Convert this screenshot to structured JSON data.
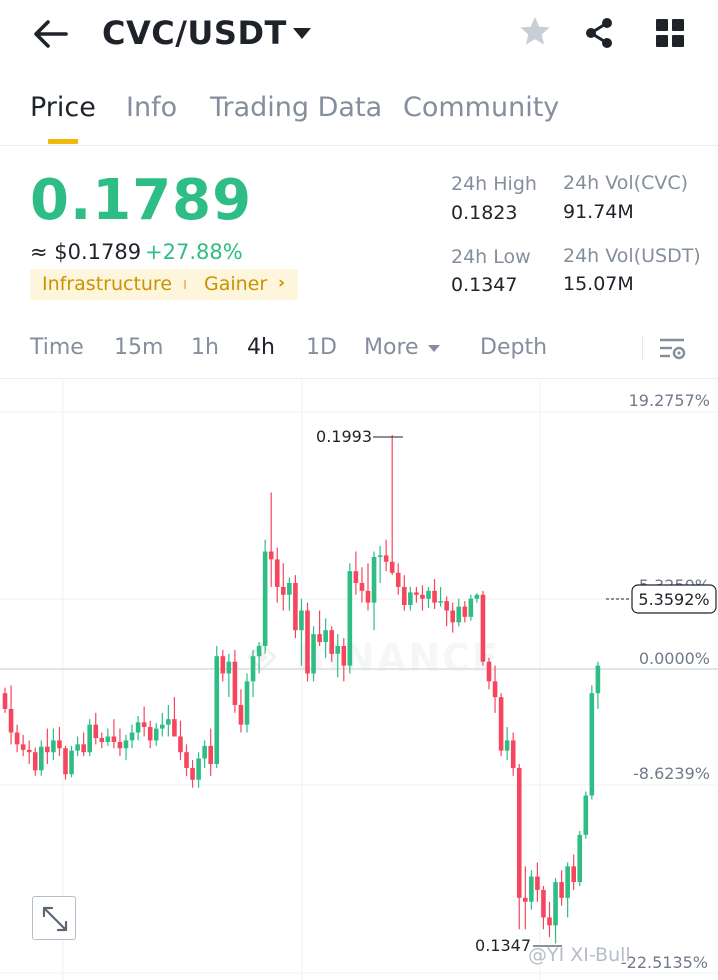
{
  "header": {
    "pair": "CVC/USDT"
  },
  "tabs": [
    "Price",
    "Info",
    "Trading Data",
    "Community"
  ],
  "ticker": {
    "last_price": "0.1789",
    "usd_price": "≈ $0.1789",
    "change_pct": "+27.88%",
    "tags": [
      "Infrastructure",
      "Gainer"
    ],
    "high_label": "24h High",
    "high_value": "0.1823",
    "low_label": "24h Low",
    "low_value": "0.1347",
    "vol_base_label": "24h Vol(CVC)",
    "vol_base_value": "91.74M",
    "vol_quote_label": "24h Vol(USDT)",
    "vol_quote_value": "15.07M"
  },
  "controls": {
    "time": "Time",
    "intervals": [
      "15m",
      "1h",
      "4h",
      "1D"
    ],
    "active_interval": "4h",
    "more": "More",
    "depth": "Depth"
  },
  "chart_data": {
    "type": "candlestick",
    "interval": "4h",
    "y_axis_labels": [
      "19.2757%",
      "0.0000%",
      "-8.6239%"
    ],
    "right_labels_partial": [
      "5.3250%",
      "-22.5135%"
    ],
    "current_marker": "5.3592%",
    "max_label": "0.1993",
    "min_label": "0.1347",
    "watermark_logo": "BINANCE",
    "up_color": "#2ebd85",
    "down_color": "#f6465d",
    "ohlc": [
      [
        0.1665,
        0.1672,
        0.164,
        0.1645
      ],
      [
        0.1645,
        0.1675,
        0.16,
        0.1615
      ],
      [
        0.1615,
        0.1625,
        0.159,
        0.16
      ],
      [
        0.16,
        0.1612,
        0.1585,
        0.1593
      ],
      [
        0.1593,
        0.1605,
        0.1575,
        0.159
      ],
      [
        0.159,
        0.1596,
        0.156,
        0.1567
      ],
      [
        0.1567,
        0.1605,
        0.156,
        0.1597
      ],
      [
        0.1597,
        0.162,
        0.1575,
        0.159
      ],
      [
        0.159,
        0.162,
        0.158,
        0.1605
      ],
      [
        0.1605,
        0.1622,
        0.1585,
        0.1595
      ],
      [
        0.1595,
        0.1598,
        0.1555,
        0.1562
      ],
      [
        0.1562,
        0.1598,
        0.1558,
        0.1592
      ],
      [
        0.1592,
        0.161,
        0.1585,
        0.16
      ],
      [
        0.16,
        0.1615,
        0.1585,
        0.159
      ],
      [
        0.159,
        0.1632,
        0.1585,
        0.1625
      ],
      [
        0.1625,
        0.164,
        0.16,
        0.1608
      ],
      [
        0.1608,
        0.1615,
        0.1595,
        0.1603
      ],
      [
        0.1603,
        0.162,
        0.1598,
        0.161
      ],
      [
        0.161,
        0.1632,
        0.1595,
        0.1603
      ],
      [
        0.1603,
        0.162,
        0.1585,
        0.1595
      ],
      [
        0.1595,
        0.1612,
        0.158,
        0.1605
      ],
      [
        0.1605,
        0.1625,
        0.1595,
        0.1615
      ],
      [
        0.1615,
        0.1636,
        0.1605,
        0.1628
      ],
      [
        0.1628,
        0.1648,
        0.161,
        0.1622
      ],
      [
        0.1622,
        0.163,
        0.1595,
        0.1605
      ],
      [
        0.1605,
        0.1627,
        0.1598,
        0.162
      ],
      [
        0.162,
        0.164,
        0.161,
        0.1625
      ],
      [
        0.1625,
        0.165,
        0.161,
        0.1632
      ],
      [
        0.1632,
        0.166,
        0.1615,
        0.161
      ],
      [
        0.161,
        0.163,
        0.158,
        0.159
      ],
      [
        0.159,
        0.16,
        0.156,
        0.157
      ],
      [
        0.157,
        0.158,
        0.1545,
        0.1555
      ],
      [
        0.1555,
        0.159,
        0.1545,
        0.1582
      ],
      [
        0.1582,
        0.1605,
        0.157,
        0.1598
      ],
      [
        0.1598,
        0.162,
        0.156,
        0.1575
      ],
      [
        0.1575,
        0.1725,
        0.157,
        0.1712
      ],
      [
        0.1712,
        0.172,
        0.168,
        0.169
      ],
      [
        0.169,
        0.1715,
        0.166,
        0.1705
      ],
      [
        0.1705,
        0.172,
        0.164,
        0.165
      ],
      [
        0.165,
        0.167,
        0.1615,
        0.1625
      ],
      [
        0.1625,
        0.169,
        0.1615,
        0.168
      ],
      [
        0.168,
        0.172,
        0.166,
        0.1712
      ],
      [
        0.1712,
        0.173,
        0.169,
        0.1725
      ],
      [
        0.1725,
        0.186,
        0.1715,
        0.1845
      ],
      [
        0.1845,
        0.192,
        0.18,
        0.1835
      ],
      [
        0.1835,
        0.185,
        0.178,
        0.18
      ],
      [
        0.18,
        0.183,
        0.177,
        0.179
      ],
      [
        0.179,
        0.1812,
        0.177,
        0.1805
      ],
      [
        0.1805,
        0.1815,
        0.1735,
        0.1745
      ],
      [
        0.1745,
        0.1785,
        0.17,
        0.177
      ],
      [
        0.177,
        0.178,
        0.168,
        0.169
      ],
      [
        0.169,
        0.175,
        0.168,
        0.174
      ],
      [
        0.174,
        0.177,
        0.1725,
        0.173
      ],
      [
        0.173,
        0.176,
        0.171,
        0.1745
      ],
      [
        0.1745,
        0.175,
        0.1705,
        0.1715
      ],
      [
        0.1715,
        0.174,
        0.1685,
        0.1725
      ],
      [
        0.1725,
        0.1735,
        0.168,
        0.17
      ],
      [
        0.17,
        0.183,
        0.169,
        0.182
      ],
      [
        0.182,
        0.1845,
        0.179,
        0.1805
      ],
      [
        0.1805,
        0.1825,
        0.178,
        0.1795
      ],
      [
        0.1795,
        0.183,
        0.177,
        0.178
      ],
      [
        0.178,
        0.1845,
        0.1745,
        0.1838
      ],
      [
        0.1838,
        0.1852,
        0.1805,
        0.184
      ],
      [
        0.184,
        0.186,
        0.182,
        0.1832
      ],
      [
        0.1832,
        0.1993,
        0.1815,
        0.1818
      ],
      [
        0.1818,
        0.183,
        0.179,
        0.18
      ],
      [
        0.18,
        0.1815,
        0.177,
        0.1777
      ],
      [
        0.1777,
        0.18,
        0.177,
        0.1793
      ],
      [
        0.1793,
        0.18,
        0.178,
        0.179
      ],
      [
        0.179,
        0.1802,
        0.177,
        0.1785
      ],
      [
        0.1785,
        0.18,
        0.1773,
        0.1795
      ],
      [
        0.1795,
        0.181,
        0.1772,
        0.178
      ],
      [
        0.178,
        0.18,
        0.1775,
        0.1782
      ],
      [
        0.1782,
        0.1788,
        0.175,
        0.177
      ],
      [
        0.177,
        0.178,
        0.1742,
        0.1755
      ],
      [
        0.1755,
        0.1785,
        0.175,
        0.1775
      ],
      [
        0.1775,
        0.1782,
        0.1755,
        0.1762
      ],
      [
        0.1762,
        0.179,
        0.1757,
        0.1785
      ],
      [
        0.1785,
        0.1792,
        0.178,
        0.179
      ],
      [
        0.179,
        0.1795,
        0.17,
        0.1705
      ],
      [
        0.1705,
        0.171,
        0.167,
        0.168
      ],
      [
        0.168,
        0.17,
        0.164,
        0.166
      ],
      [
        0.166,
        0.1665,
        0.1585,
        0.1592
      ],
      [
        0.1592,
        0.1622,
        0.158,
        0.1605
      ],
      [
        0.1605,
        0.1615,
        0.156,
        0.157
      ],
      [
        0.157,
        0.1575,
        0.1365,
        0.1405
      ],
      [
        0.1405,
        0.1445,
        0.1365,
        0.14
      ],
      [
        0.14,
        0.144,
        0.139,
        0.1432
      ],
      [
        0.1432,
        0.145,
        0.14,
        0.1415
      ],
      [
        0.1415,
        0.142,
        0.1365,
        0.138
      ],
      [
        0.138,
        0.14,
        0.1355,
        0.137
      ],
      [
        0.137,
        0.143,
        0.1347,
        0.1425
      ],
      [
        0.1425,
        0.144,
        0.1395,
        0.1405
      ],
      [
        0.1405,
        0.145,
        0.138,
        0.1445
      ],
      [
        0.1445,
        0.146,
        0.1415,
        0.1425
      ],
      [
        0.1425,
        0.149,
        0.142,
        0.1485
      ],
      [
        0.1485,
        0.154,
        0.148,
        0.1535
      ],
      [
        0.1535,
        0.1675,
        0.153,
        0.1665
      ],
      [
        0.1665,
        0.1705,
        0.1645,
        0.17
      ]
    ]
  },
  "watermark": "@YI XI-Bull"
}
